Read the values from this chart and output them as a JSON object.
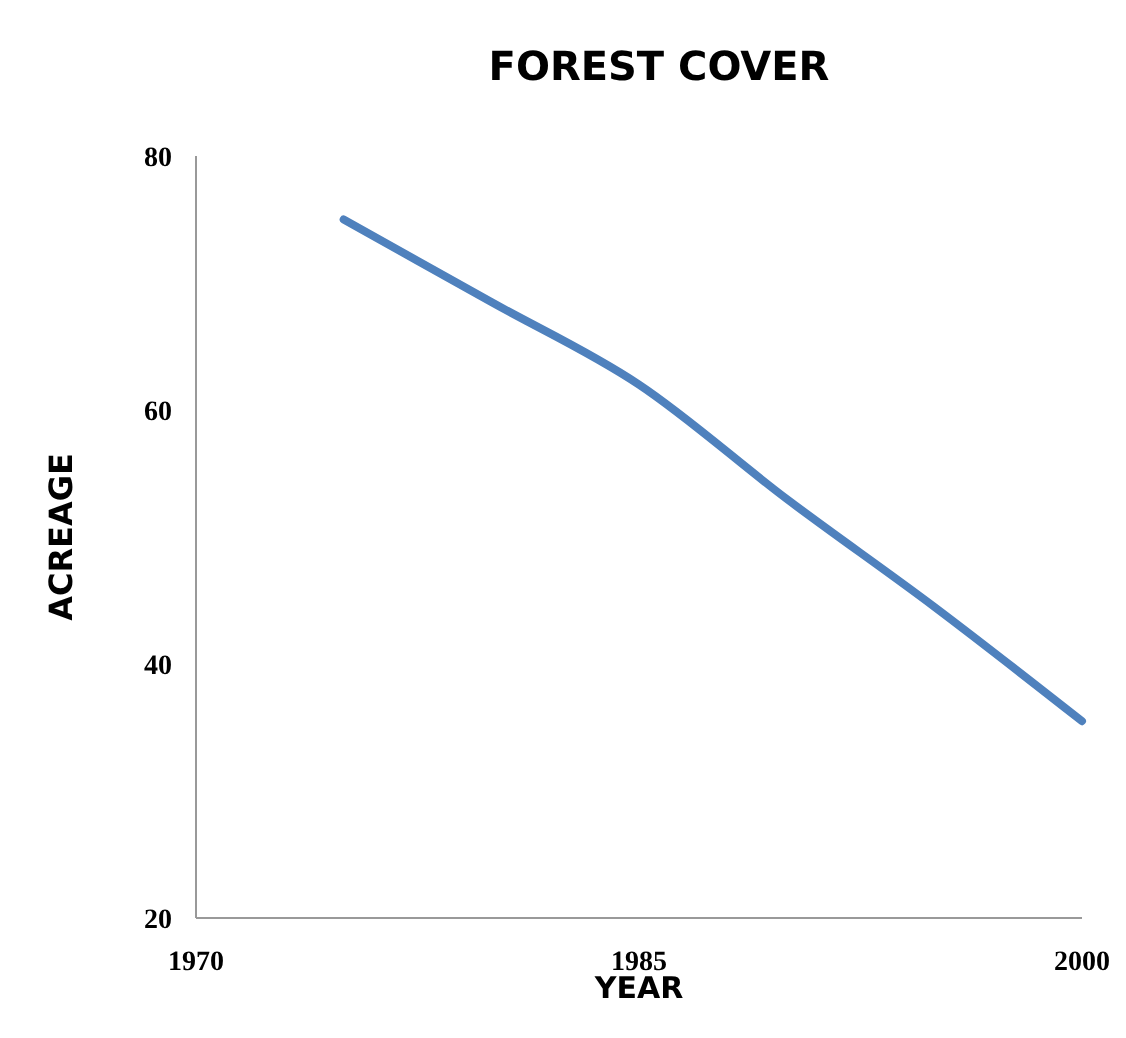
{
  "chart_data": {
    "type": "line",
    "title": "FOREST COVER",
    "xlabel": "YEAR",
    "ylabel": "ACREAGE",
    "x": [
      1975,
      1980,
      1985,
      1990,
      1995,
      2000
    ],
    "series": [
      {
        "color": "#4f81bd",
        "values": [
          75,
          68.5,
          62,
          53,
          44.5,
          35.5
        ]
      }
    ],
    "xlim": [
      1970,
      2000
    ],
    "xticks": [
      1970,
      1985,
      2000
    ],
    "ylim": [
      20,
      80
    ],
    "yticks": [
      20,
      40,
      60,
      80
    ],
    "grid": false,
    "marker": "none",
    "line_style": "solid"
  }
}
